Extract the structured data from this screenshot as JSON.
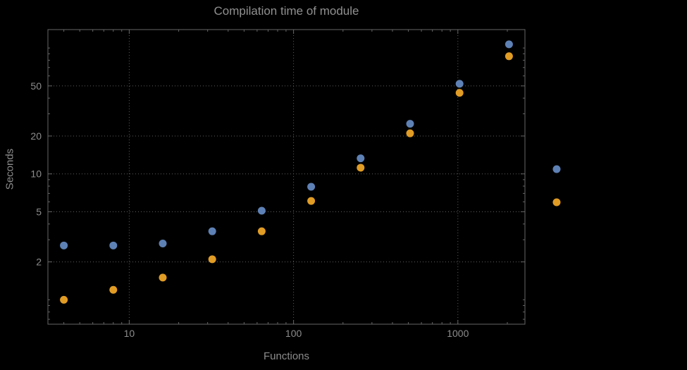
{
  "chart_data": {
    "type": "scatter",
    "title": "Compilation time of module",
    "xlabel": "Functions",
    "ylabel": "Seconds",
    "xscale": "log",
    "yscale": "log",
    "xlim": [
      3.2,
      2560
    ],
    "ylim": [
      0.64,
      140
    ],
    "xticks": [
      10,
      100,
      1000
    ],
    "yticks": [
      2,
      5,
      10,
      20,
      50
    ],
    "grid": true,
    "x": [
      4,
      8,
      16,
      32,
      64,
      128,
      256,
      512,
      1024,
      2048
    ],
    "series": [
      {
        "name": "series-blue",
        "color": "#5e81b5",
        "values": [
          2.7,
          2.7,
          2.8,
          3.5,
          5.1,
          7.9,
          13.3,
          25,
          52,
          107
        ]
      },
      {
        "name": "series-orange",
        "color": "#e09c24",
        "values": [
          1.0,
          1.2,
          1.5,
          2.1,
          3.5,
          6.1,
          11.2,
          21,
          44,
          86
        ]
      }
    ],
    "legend": {
      "position": "right-outside",
      "items": [
        {
          "label": "",
          "color": "#5e81b5"
        },
        {
          "label": "",
          "color": "#e09c24"
        }
      ]
    },
    "style": {
      "background": "#000000",
      "frame": "#666666",
      "grid": "#5e5e5e",
      "tick_text": "#8c8c8c",
      "title_text": "#909090",
      "point_radius": 5.5
    }
  }
}
